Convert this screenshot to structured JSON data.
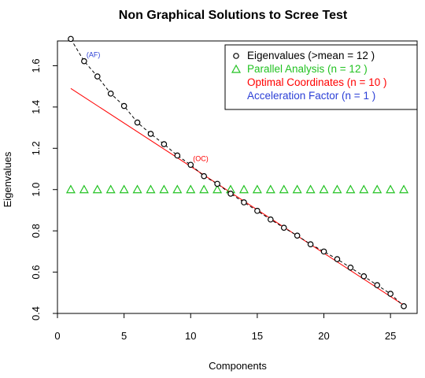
{
  "chart_data": {
    "type": "scatter",
    "title": "Non Graphical Solutions to Scree Test",
    "xlabel": "Components",
    "ylabel": "Eigenvalues",
    "xlim": [
      0,
      27
    ],
    "ylim": [
      0.4,
      1.72
    ],
    "x_ticks": [
      0,
      5,
      10,
      15,
      20,
      25
    ],
    "y_ticks": [
      0.4,
      0.6,
      0.8,
      1.0,
      1.2,
      1.4,
      1.6
    ],
    "x_tick_labels": [
      "0",
      "5",
      "10",
      "15",
      "20",
      "25"
    ],
    "y_tick_labels": [
      "0.4",
      "0.6",
      "0.8",
      "1.0",
      "1.2",
      "1.4",
      "1.6"
    ],
    "grid": false,
    "legend_position": "top-right",
    "colors": {
      "eigenvalues": "#000000",
      "parallel": "#22c222",
      "optimal": "#ff0000",
      "acceleration": "#2b3fd6"
    },
    "legend": [
      {
        "label": "Eigenvalues (>mean  =  12 )",
        "color": "#000000",
        "marker": "circle"
      },
      {
        "label": "Parallel Analysis (n =  12 )",
        "color": "#22c222",
        "marker": "triangle"
      },
      {
        "label": "Optimal Coordinates (n =  10 )",
        "color": "#ff0000",
        "marker": "none"
      },
      {
        "label": "Acceleration Factor (n =  1 )",
        "color": "#2b3fd6",
        "marker": "none"
      }
    ],
    "series": [
      {
        "key": "eigenvalues",
        "x": [
          1,
          2,
          3,
          4,
          5,
          6,
          7,
          8,
          9,
          10,
          11,
          12,
          13,
          14,
          15,
          16,
          17,
          18,
          19,
          20,
          21,
          22,
          23,
          24,
          25,
          26
        ],
        "values": [
          1.73,
          1.622,
          1.548,
          1.465,
          1.405,
          1.325,
          1.27,
          1.22,
          1.165,
          1.12,
          1.065,
          1.028,
          0.98,
          0.938,
          0.897,
          0.855,
          0.815,
          0.777,
          0.735,
          0.7,
          0.663,
          0.622,
          0.58,
          0.537,
          0.495,
          0.435
        ]
      },
      {
        "key": "parallel",
        "x": [
          1,
          2,
          3,
          4,
          5,
          6,
          7,
          8,
          9,
          10,
          11,
          12,
          13,
          14,
          15,
          16,
          17,
          18,
          19,
          20,
          21,
          22,
          23,
          24,
          25,
          26
        ],
        "values": [
          1.0,
          1.0,
          1.0,
          1.0,
          1.0,
          1.0,
          1.0,
          1.0,
          1.0,
          1.0,
          1.0,
          1.0,
          1.0,
          1.0,
          1.0,
          1.0,
          1.0,
          1.0,
          1.0,
          1.0,
          1.0,
          1.0,
          1.0,
          1.0,
          1.0,
          1.0
        ]
      }
    ],
    "optimal_line": {
      "x": [
        1,
        26
      ],
      "values": [
        1.49,
        0.44
      ]
    },
    "annotations": [
      {
        "text": "(AF)",
        "x": 2,
        "y": 1.622,
        "color": "#2b3fd6"
      },
      {
        "text": "(OC)",
        "x": 10,
        "y": 1.12,
        "color": "#ff0000"
      }
    ]
  }
}
